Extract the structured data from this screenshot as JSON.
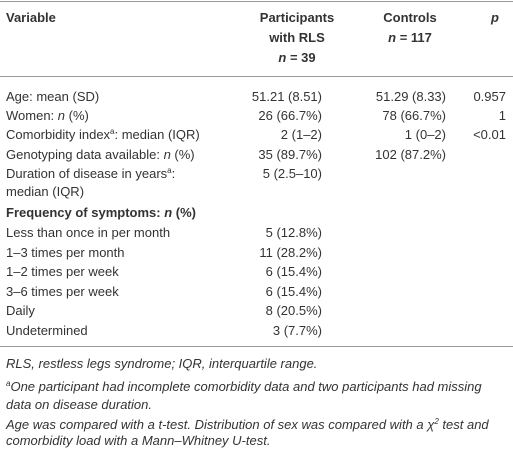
{
  "header": {
    "variable": "Variable",
    "participants": [
      "Participants",
      "with RLS",
      [
        "n",
        " = 39"
      ]
    ],
    "controls": [
      "Controls",
      [
        "n",
        " = 117"
      ]
    ],
    "p": "p"
  },
  "rows": [
    {
      "label": [
        "Age: mean (SD)"
      ],
      "participants": "51.21 (8.51)",
      "controls": "51.29 (8.33)",
      "p": "0.957"
    },
    {
      "label": [
        "Women: ",
        "n",
        " (%)"
      ],
      "participants": "26 (66.7%)",
      "controls": "78 (66.7%)",
      "p": "1"
    },
    {
      "label": [
        "Comorbidity index",
        "a",
        ": median (IQR)"
      ],
      "participants": "2 (1–2)",
      "controls": "1 (0–2)",
      "p": "<0.01"
    },
    {
      "label": [
        "Genotyping data available: ",
        "n",
        " (%)"
      ],
      "participants": "35 (89.7%)",
      "controls": "102 (87.2%)"
    },
    {
      "label": [
        "Duration of disease in years",
        "a",
        ":",
        "median (IQR)"
      ],
      "participants": "5 (2.5–10)"
    }
  ],
  "section": {
    "title": [
      "Frequency of symptoms: ",
      "n",
      " (%)"
    ],
    "rows": [
      {
        "label": "Less than once in per month",
        "participants": "5 (12.8%)"
      },
      {
        "label": "1–3 times per month",
        "participants": "11 (28.2%)"
      },
      {
        "label": "1–2 times per week",
        "participants": "6 (15.4%)"
      },
      {
        "label": "3–6 times per week",
        "participants": "6 (15.4%)"
      },
      {
        "label": "Daily",
        "participants": "8 (20.5%)"
      },
      {
        "label": "Undetermined",
        "participants": "3 (7.7%)"
      }
    ]
  },
  "footnotes": [
    "RLS, restless legs syndrome; IQR, interquartile range.",
    [
      "a",
      "One participant had incomplete comorbidity data and two participants had missing",
      "data on disease duration."
    ],
    [
      "Age was compared with a t-test. Distribution of sex was compared with a χ",
      "2",
      " test and",
      "comorbidity load with a Mann–Whitney U-test."
    ]
  ]
}
